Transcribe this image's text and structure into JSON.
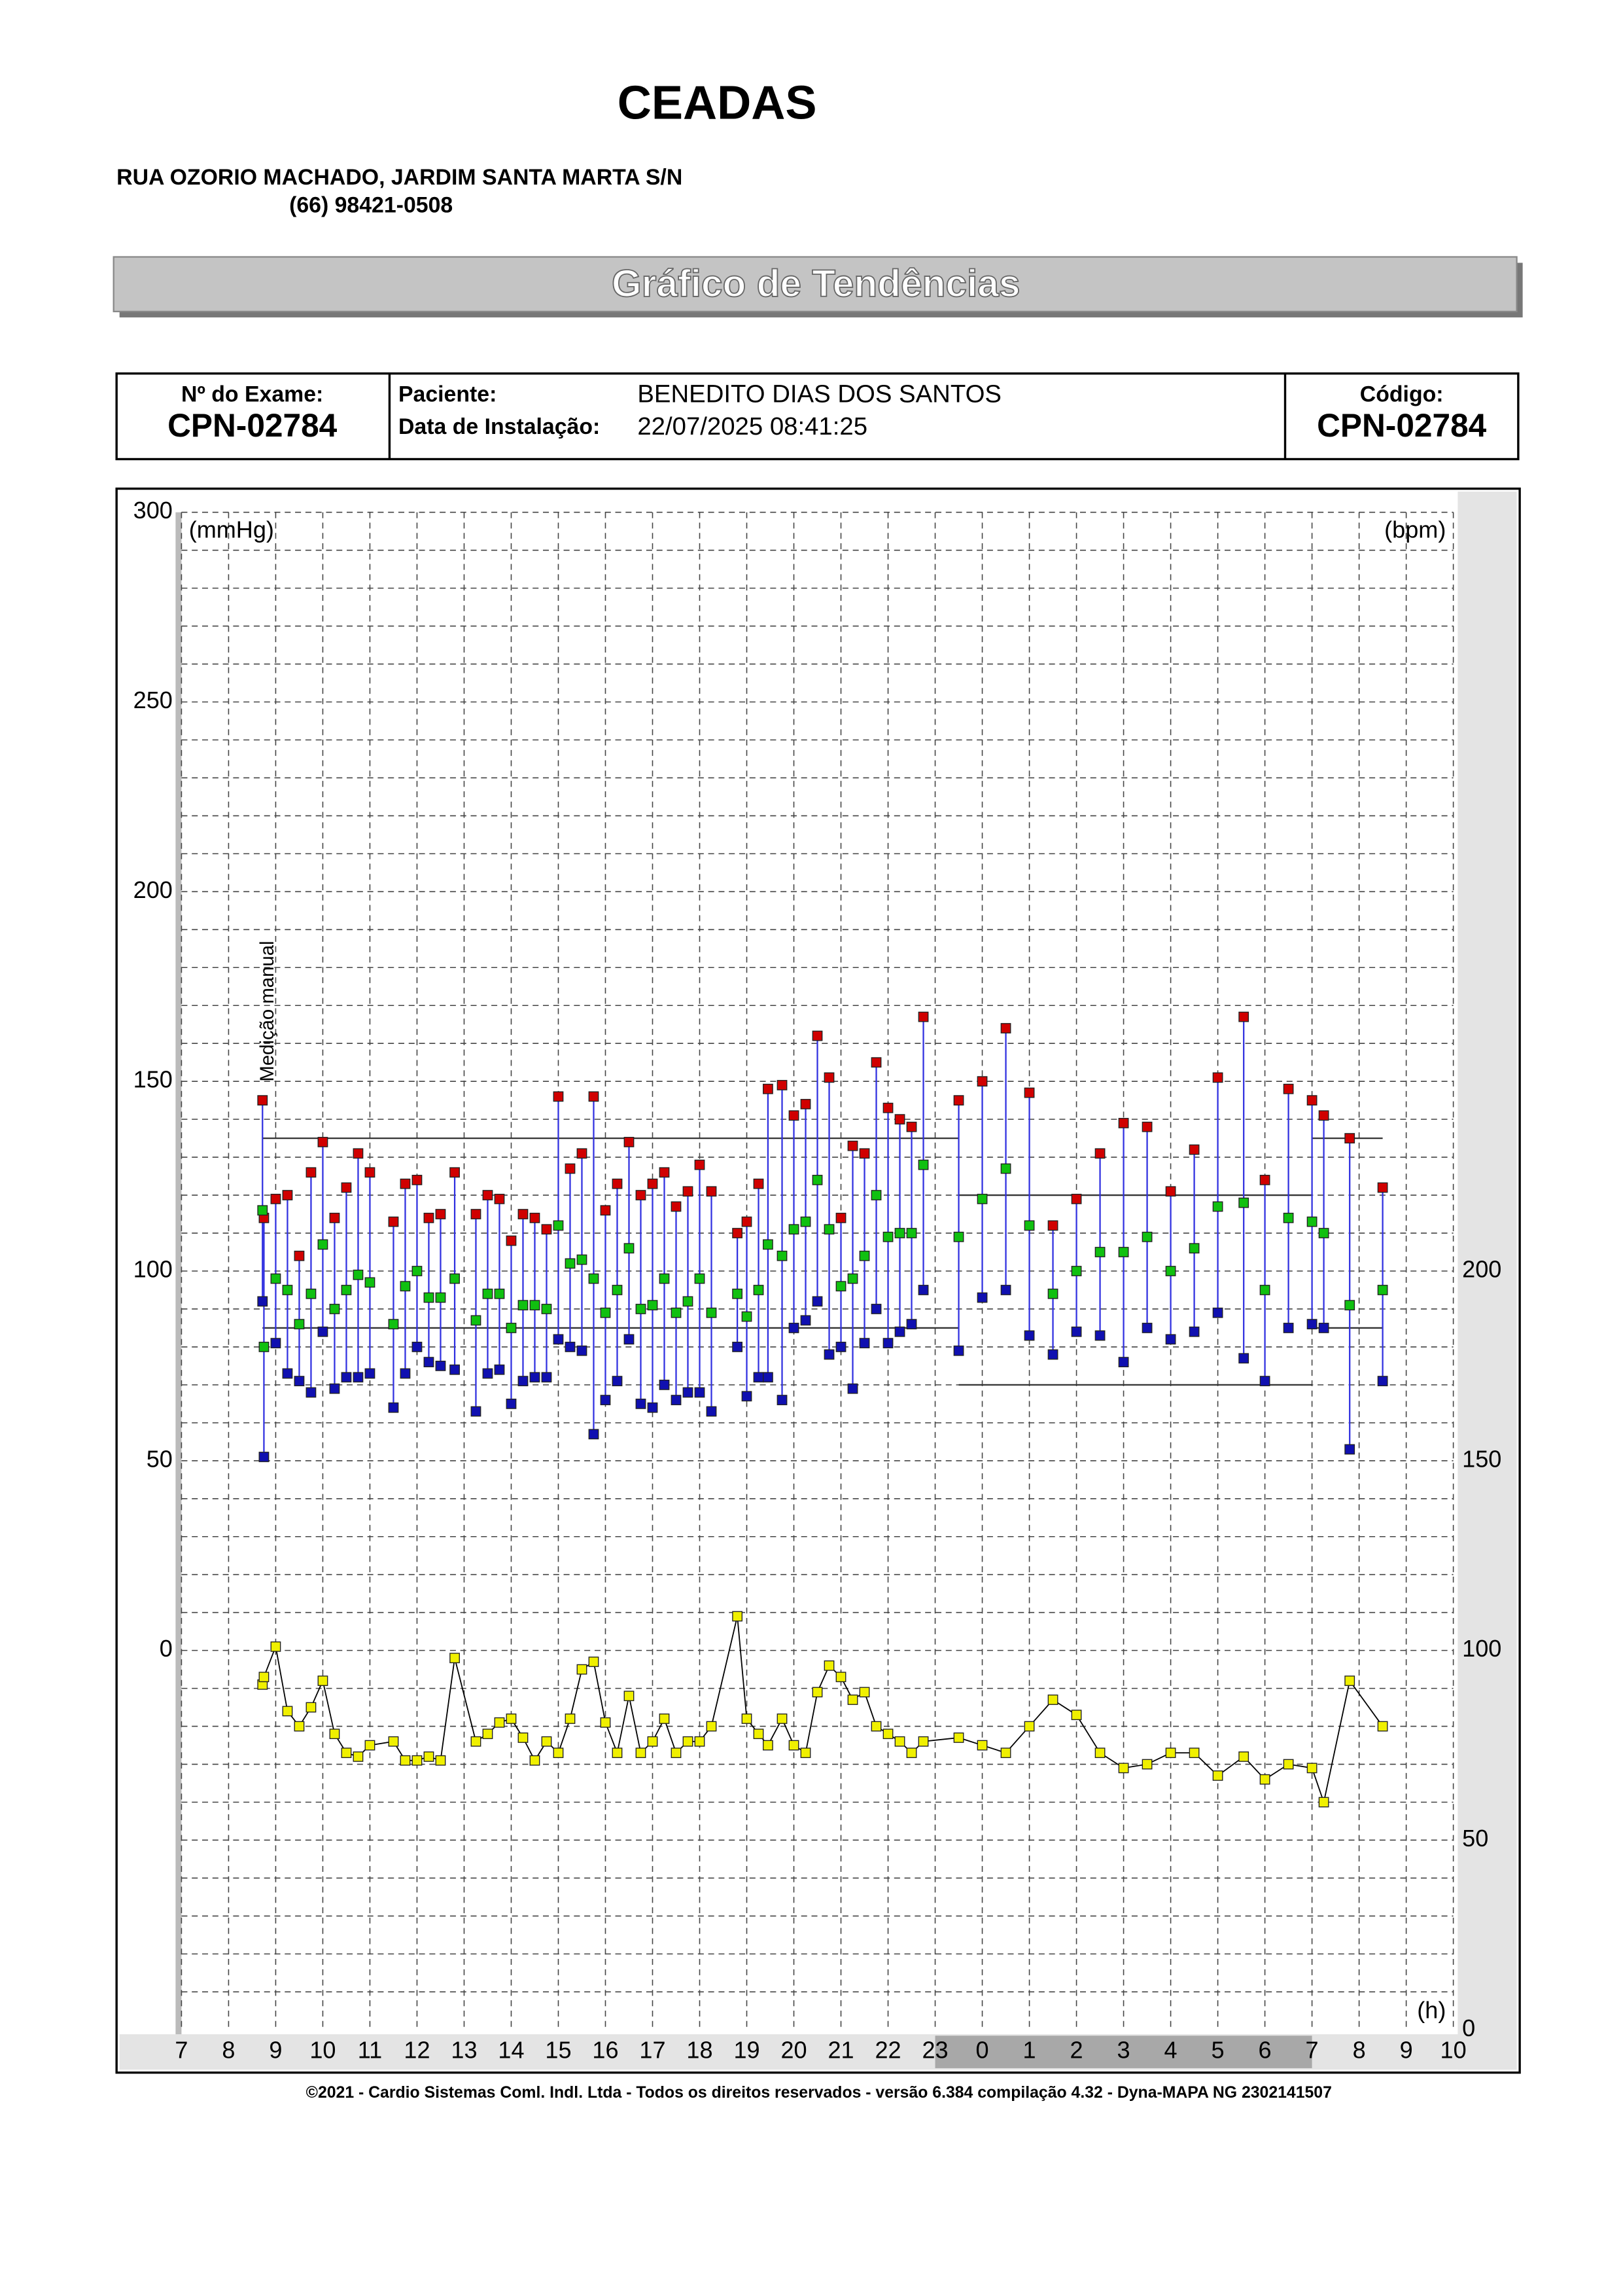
{
  "header": {
    "title": "CEADAS",
    "address": "RUA OZORIO MACHADO, JARDIM SANTA MARTA S/N",
    "phone": "(66) 98421-0508",
    "banner": "Gráfico de Tendências"
  },
  "info": {
    "exam_label": "Nº do Exame:",
    "exam": "CPN-02784",
    "patient_label": "Paciente:",
    "patient": "BENEDITO DIAS DOS SANTOS",
    "date_label": "Data de Instalação:",
    "date": "22/07/2025 08:41:25",
    "code_label": "Código:",
    "code": "CPN-02784"
  },
  "footer": "©2021 - Cardio Sistemas Coml. Indl. Ltda - Todos os direitos reservados - versão 6.384 compilação 4.32 - Dyna-MAPA NG 2302141507",
  "chart_data": {
    "type": "trend",
    "ylabel": "(mmHg)",
    "y2label": "(bpm)",
    "xlabel": "(h)",
    "annotation": {
      "text": "Medição manual",
      "x": 8.72
    },
    "xlim": [
      7,
      34
    ],
    "xticks": [
      7,
      8,
      9,
      10,
      11,
      12,
      13,
      14,
      15,
      16,
      17,
      18,
      19,
      20,
      21,
      22,
      23,
      {
        "value": 24,
        "label": "0"
      },
      {
        "value": 25,
        "label": "1"
      },
      {
        "value": 26,
        "label": "2"
      },
      {
        "value": 27,
        "label": "3"
      },
      {
        "value": 28,
        "label": "4"
      },
      {
        "value": 29,
        "label": "5"
      },
      {
        "value": 30,
        "label": "6"
      },
      {
        "value": 31,
        "label": "7"
      },
      {
        "value": 32,
        "label": "8"
      },
      {
        "value": 33,
        "label": "9"
      },
      {
        "value": 34,
        "label": "10"
      }
    ],
    "ylim": [
      -100,
      300
    ],
    "yticks": [
      0,
      50,
      100,
      150,
      200,
      250,
      300
    ],
    "minor_yticks": [
      -90,
      -80,
      -70,
      -60,
      -50,
      -40,
      -30,
      -20,
      -10,
      10,
      20,
      30,
      40,
      60,
      70,
      80,
      90,
      110,
      120,
      130,
      140,
      160,
      170,
      180,
      190,
      210,
      220,
      230,
      240,
      260,
      270,
      280,
      290
    ],
    "y2lim": [
      0,
      400
    ],
    "y2ticks": [
      0,
      50,
      100,
      150,
      200
    ],
    "grid": true,
    "sleep_period": [
      23,
      31
    ],
    "reference_lines": [
      {
        "x": [
          8.72,
          23.5
        ],
        "y": 135
      },
      {
        "x": [
          8.72,
          23.5
        ],
        "y": 85
      },
      {
        "x": [
          23.5,
          31
        ],
        "y": 120
      },
      {
        "x": [
          23.5,
          31
        ],
        "y": 70
      },
      {
        "x": [
          31,
          32.5
        ],
        "y": 135
      },
      {
        "x": [
          31,
          32.5
        ],
        "y": 85
      }
    ],
    "x": [
      8.72,
      8.75,
      9.0,
      9.25,
      9.5,
      9.75,
      10.0,
      10.25,
      10.5,
      10.75,
      11.0,
      11.5,
      11.75,
      12.0,
      12.25,
      12.5,
      12.8,
      13.25,
      13.5,
      13.75,
      14.0,
      14.25,
      14.5,
      14.75,
      15.0,
      15.25,
      15.5,
      15.75,
      16.0,
      16.25,
      16.5,
      16.75,
      17.0,
      17.25,
      17.5,
      17.75,
      18.0,
      18.25,
      18.8,
      19.0,
      19.25,
      19.45,
      19.75,
      20.0,
      20.25,
      20.5,
      20.75,
      21.0,
      21.25,
      21.5,
      21.75,
      22.0,
      22.25,
      22.5,
      22.75,
      23.5,
      24.0,
      24.5,
      25.0,
      25.5,
      26.0,
      26.5,
      27.0,
      27.5,
      28.0,
      28.5,
      29.0,
      29.55,
      30.0,
      30.5,
      31.0,
      31.25,
      31.8,
      32.5
    ],
    "series": [
      {
        "color": "#d00000",
        "values": [
          145,
          114,
          119,
          120,
          104,
          126,
          134,
          114,
          122,
          131,
          126,
          113,
          123,
          124,
          114,
          115,
          126,
          115,
          120,
          119,
          108,
          115,
          114,
          111,
          146,
          127,
          131,
          146,
          116,
          123,
          134,
          120,
          123,
          126,
          117,
          121,
          128,
          121,
          110,
          113,
          123,
          148,
          149,
          141,
          144,
          162,
          151,
          114,
          133,
          131,
          155,
          143,
          140,
          138,
          167,
          145,
          150,
          164,
          147,
          112,
          119,
          131,
          139,
          138,
          121,
          132,
          151,
          167,
          124,
          148,
          145,
          141,
          135,
          122
        ]
      },
      {
        "color": "#10c010",
        "values": [
          116,
          80,
          98,
          95,
          86,
          94,
          107,
          90,
          95,
          99,
          97,
          86,
          96,
          100,
          93,
          93,
          98,
          87,
          94,
          94,
          85,
          91,
          91,
          90,
          112,
          102,
          103,
          98,
          89,
          95,
          106,
          90,
          91,
          98,
          89,
          92,
          98,
          89,
          94,
          88,
          95,
          107,
          104,
          111,
          113,
          124,
          111,
          96,
          98,
          104,
          120,
          109,
          110,
          110,
          128,
          109,
          119,
          127,
          112,
          94,
          100,
          105,
          105,
          109,
          100,
          106,
          117,
          118,
          95,
          114,
          113,
          110,
          91,
          95
        ]
      },
      {
        "color": "#1010b0",
        "values": [
          92,
          51,
          81,
          73,
          71,
          68,
          84,
          69,
          72,
          72,
          73,
          64,
          73,
          80,
          76,
          75,
          74,
          63,
          73,
          74,
          65,
          71,
          72,
          72,
          82,
          80,
          79,
          57,
          66,
          71,
          82,
          65,
          64,
          70,
          66,
          68,
          68,
          63,
          80,
          67,
          72,
          72,
          66,
          85,
          87,
          92,
          78,
          80,
          69,
          81,
          90,
          81,
          84,
          86,
          95,
          79,
          93,
          95,
          83,
          78,
          84,
          83,
          76,
          85,
          82,
          84,
          89,
          77,
          71,
          85,
          86,
          85,
          53,
          71
        ]
      },
      {
        "color": "#f0f000",
        "axis": "y2",
        "values": [
          91,
          93,
          101,
          84,
          80,
          85,
          92,
          78,
          73,
          72,
          75,
          76,
          71,
          71,
          72,
          71,
          98,
          76,
          78,
          81,
          82,
          77,
          71,
          76,
          73,
          82,
          95,
          97,
          81,
          73,
          88,
          73,
          76,
          82,
          73,
          76,
          76,
          80,
          109,
          82,
          78,
          75,
          82,
          75,
          73,
          89,
          96,
          93,
          87,
          89,
          80,
          78,
          76,
          73,
          76,
          77,
          75,
          73,
          80,
          87,
          83,
          73,
          69,
          70,
          73,
          73,
          67,
          72,
          66,
          70,
          69,
          60,
          92,
          80
        ]
      }
    ]
  }
}
